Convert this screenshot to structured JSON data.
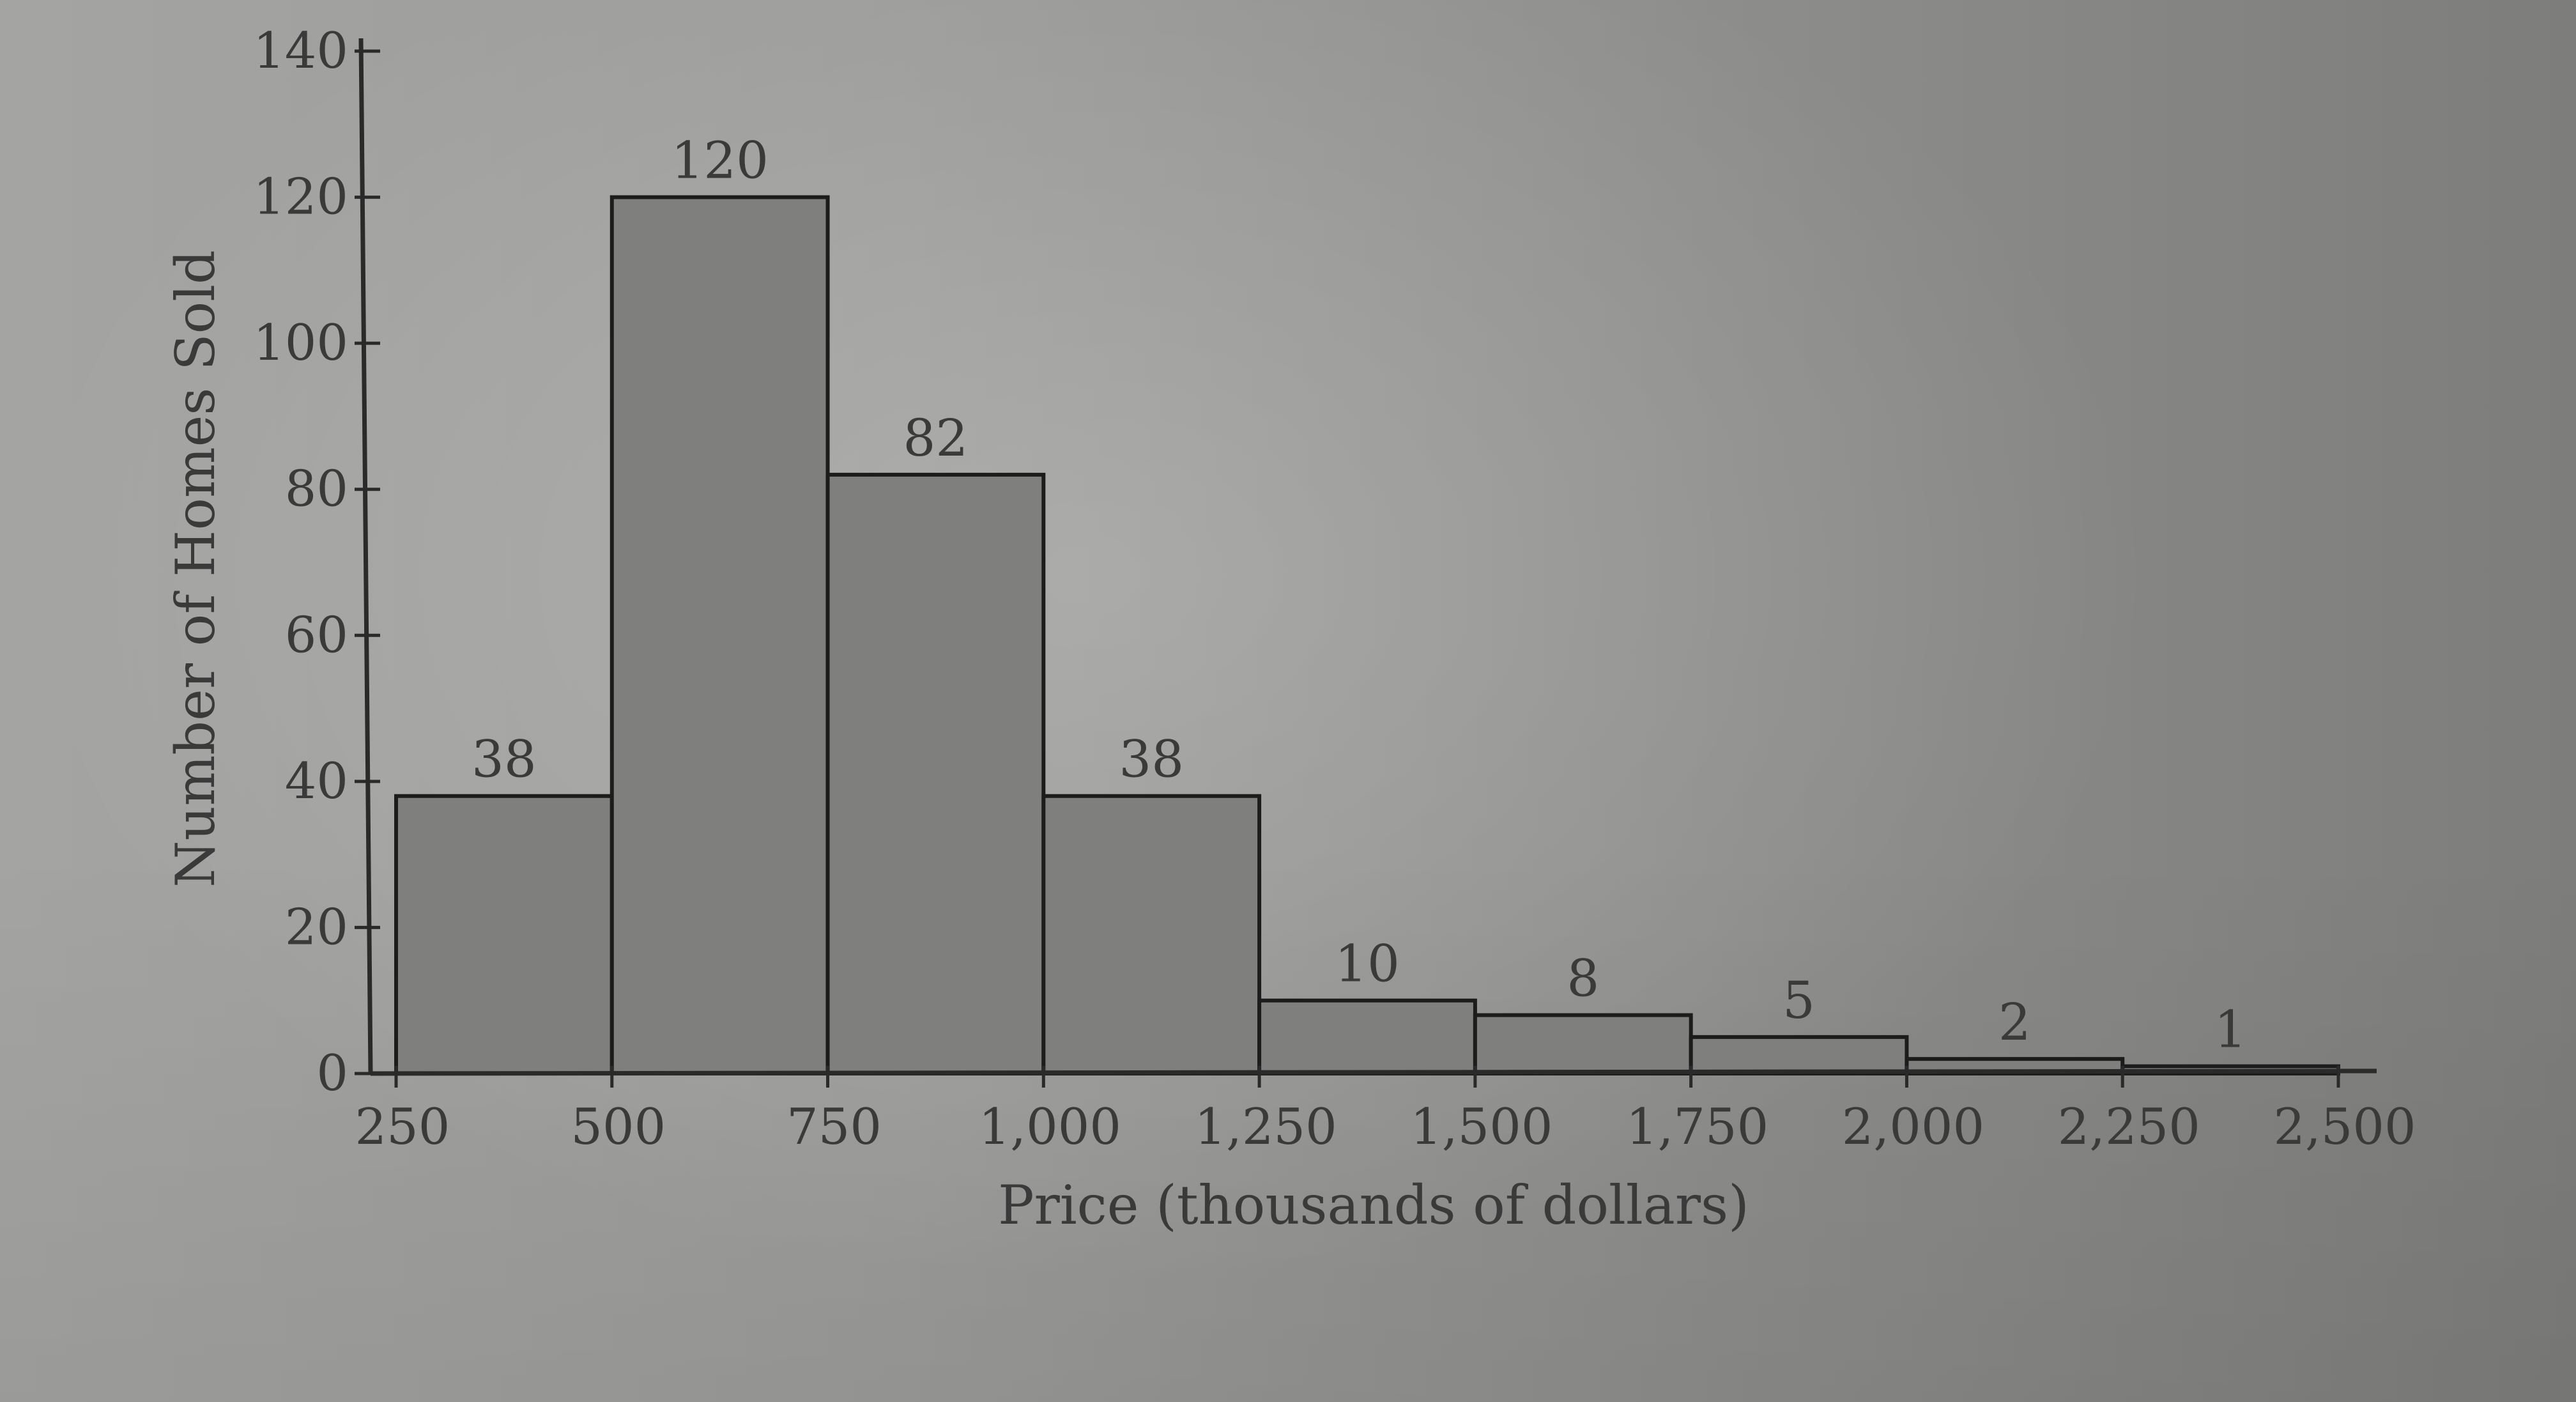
{
  "chart_data": {
    "type": "bar",
    "xlabel": "Price (thousands of dollars)",
    "ylabel": "Number of Homes Sold",
    "ylim": [
      0,
      140
    ],
    "xlim": [
      250,
      2500
    ],
    "y_ticks": [
      0,
      20,
      40,
      60,
      80,
      100,
      120,
      140
    ],
    "x_ticks": [
      250,
      500,
      750,
      1000,
      1250,
      1500,
      1750,
      2000,
      2250,
      2500
    ],
    "x_tick_labels": [
      "250",
      "500",
      "750",
      "1,000",
      "1,250",
      "1,500",
      "1,750",
      "2,000",
      "2,250",
      "2,500"
    ],
    "bins": [
      {
        "start": 250,
        "end": 500,
        "value": 38,
        "label": "38"
      },
      {
        "start": 500,
        "end": 750,
        "value": 120,
        "label": "120"
      },
      {
        "start": 750,
        "end": 1000,
        "value": 82,
        "label": "82"
      },
      {
        "start": 1000,
        "end": 1250,
        "value": 38,
        "label": "38"
      },
      {
        "start": 1250,
        "end": 1500,
        "value": 10,
        "label": "10"
      },
      {
        "start": 1500,
        "end": 1750,
        "value": 8,
        "label": "8"
      },
      {
        "start": 1750,
        "end": 2000,
        "value": 5,
        "label": "5"
      },
      {
        "start": 2000,
        "end": 2250,
        "value": 2,
        "label": "2"
      },
      {
        "start": 2250,
        "end": 2500,
        "value": 1,
        "label": "1"
      }
    ],
    "grid": false,
    "colors": {
      "bar_fill": "#7f7f7d",
      "bar_edge": "#1c1c1c"
    }
  }
}
